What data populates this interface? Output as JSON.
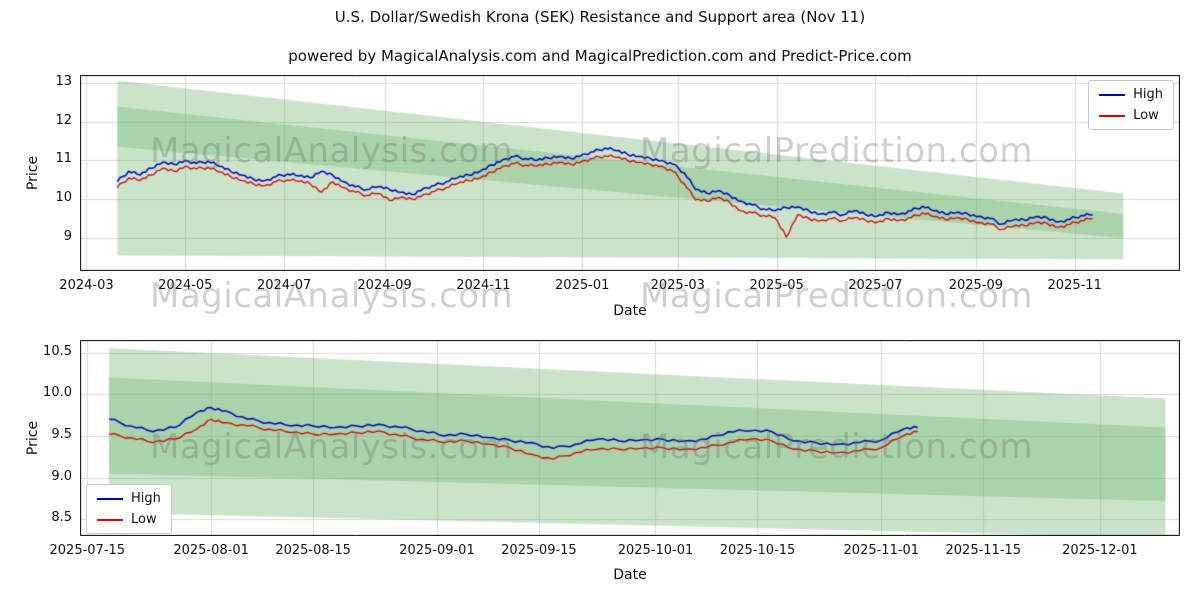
{
  "header": {
    "title": "U.S. Dollar/Swedish Krona (SEK) Resistance and Support area (Nov 11)",
    "subtitle": "powered by MagicalAnalysis.com and MagicalPrediction.com and Predict-Price.com"
  },
  "watermarks": {
    "analysis": "MagicalAnalysis.com",
    "prediction": "MagicalPrediction.com"
  },
  "colors": {
    "high": "#0000cc",
    "low": "#dd0000",
    "band": "#74b874",
    "band_alpha": 0.38,
    "grid": "#d9d9d9",
    "spine": "#000000"
  },
  "chart_data": [
    {
      "type": "line",
      "xlabel": "Date",
      "ylabel": "Price",
      "x_range": [
        "2024-02-26",
        "2026-01-05"
      ],
      "y_range": [
        8.15,
        13.2
      ],
      "jitter": 0.04,
      "x_ticks": [
        {
          "label": "2024-03",
          "date": "2024-03-01"
        },
        {
          "label": "2024-05",
          "date": "2024-05-01"
        },
        {
          "label": "2024-07",
          "date": "2024-07-01"
        },
        {
          "label": "2024-09",
          "date": "2024-09-01"
        },
        {
          "label": "2024-11",
          "date": "2024-11-01"
        },
        {
          "label": "2025-01",
          "date": "2025-01-01"
        },
        {
          "label": "2025-03",
          "date": "2025-03-01"
        },
        {
          "label": "2025-05",
          "date": "2025-05-01"
        },
        {
          "label": "2025-07",
          "date": "2025-07-01"
        },
        {
          "label": "2025-09",
          "date": "2025-09-01"
        },
        {
          "label": "2025-11",
          "date": "2025-11-01"
        }
      ],
      "y_ticks": [
        {
          "label": "9",
          "value": 9
        },
        {
          "label": "10",
          "value": 10
        },
        {
          "label": "11",
          "value": 11
        },
        {
          "label": "12",
          "value": 12
        },
        {
          "label": "13",
          "value": 13
        }
      ],
      "legend": {
        "position": "upper-right",
        "entries": [
          {
            "label": "High",
            "key": "high"
          },
          {
            "label": "Low",
            "key": "low"
          }
        ]
      },
      "bands": [
        {
          "x": [
            "2024-03-20",
            "2025-12-01"
          ],
          "top": [
            13.05,
            10.15
          ],
          "bottom": [
            11.35,
            9.0
          ]
        },
        {
          "x": [
            "2024-03-20",
            "2025-12-01"
          ],
          "top": [
            12.38,
            9.62
          ],
          "bottom": [
            8.55,
            8.45
          ]
        }
      ],
      "dates": [
        "2024-03-20",
        "2024-03-27",
        "2024-04-03",
        "2024-04-10",
        "2024-04-17",
        "2024-04-24",
        "2024-05-01",
        "2024-05-08",
        "2024-05-15",
        "2024-05-22",
        "2024-05-29",
        "2024-06-05",
        "2024-06-12",
        "2024-06-19",
        "2024-06-26",
        "2024-07-03",
        "2024-07-10",
        "2024-07-17",
        "2024-07-24",
        "2024-07-31",
        "2024-08-07",
        "2024-08-14",
        "2024-08-21",
        "2024-08-28",
        "2024-09-04",
        "2024-09-11",
        "2024-09-18",
        "2024-09-25",
        "2024-10-02",
        "2024-10-09",
        "2024-10-16",
        "2024-10-23",
        "2024-10-30",
        "2024-11-06",
        "2024-11-13",
        "2024-11-20",
        "2024-11-27",
        "2024-12-04",
        "2024-12-11",
        "2024-12-18",
        "2024-12-25",
        "2025-01-01",
        "2025-01-08",
        "2025-01-15",
        "2025-01-22",
        "2025-01-29",
        "2025-02-05",
        "2025-02-12",
        "2025-02-19",
        "2025-02-26",
        "2025-03-05",
        "2025-03-12",
        "2025-03-19",
        "2025-03-26",
        "2025-04-02",
        "2025-04-09",
        "2025-04-16",
        "2025-04-23",
        "2025-04-30",
        "2025-05-07",
        "2025-05-14",
        "2025-05-21",
        "2025-05-28",
        "2025-06-04",
        "2025-06-11",
        "2025-06-18",
        "2025-06-25",
        "2025-07-02",
        "2025-07-09",
        "2025-07-16",
        "2025-07-23",
        "2025-07-30",
        "2025-08-06",
        "2025-08-13",
        "2025-08-20",
        "2025-08-27",
        "2025-09-03",
        "2025-09-10",
        "2025-09-17",
        "2025-09-24",
        "2025-10-01",
        "2025-10-08",
        "2025-10-15",
        "2025-10-22",
        "2025-10-29",
        "2025-11-05",
        "2025-11-12"
      ],
      "series": [
        {
          "name": "High",
          "color_key": "high",
          "width": 1.5,
          "values": [
            10.45,
            10.72,
            10.62,
            10.8,
            10.95,
            10.9,
            11.0,
            10.92,
            10.98,
            10.85,
            10.72,
            10.62,
            10.52,
            10.48,
            10.58,
            10.65,
            10.6,
            10.55,
            10.72,
            10.62,
            10.45,
            10.32,
            10.25,
            10.32,
            10.25,
            10.18,
            10.12,
            10.28,
            10.35,
            10.45,
            10.55,
            10.62,
            10.72,
            10.88,
            11.02,
            11.1,
            11.05,
            11.0,
            11.06,
            11.1,
            11.05,
            11.15,
            11.22,
            11.32,
            11.25,
            11.15,
            11.1,
            11.05,
            11.0,
            10.9,
            10.68,
            10.25,
            10.15,
            10.22,
            10.1,
            9.95,
            9.85,
            9.75,
            9.7,
            9.78,
            9.8,
            9.7,
            9.62,
            9.66,
            9.6,
            9.7,
            9.6,
            9.56,
            9.66,
            9.62,
            9.7,
            9.82,
            9.7,
            9.62,
            9.66,
            9.62,
            9.56,
            9.5,
            9.36,
            9.46,
            9.46,
            9.55,
            9.52,
            9.42,
            9.48,
            9.58,
            9.6
          ]
        },
        {
          "name": "Low",
          "color_key": "low",
          "width": 1.3,
          "values": [
            10.3,
            10.55,
            10.48,
            10.62,
            10.8,
            10.72,
            10.85,
            10.78,
            10.82,
            10.7,
            10.58,
            10.48,
            10.4,
            10.35,
            10.45,
            10.5,
            10.46,
            10.4,
            10.18,
            10.45,
            10.3,
            10.18,
            10.1,
            10.15,
            9.97,
            10.05,
            10.0,
            10.12,
            10.2,
            10.3,
            10.4,
            10.48,
            10.55,
            10.7,
            10.85,
            10.92,
            10.88,
            10.85,
            10.9,
            10.95,
            10.9,
            10.98,
            11.05,
            11.12,
            11.08,
            11.0,
            10.95,
            10.9,
            10.85,
            10.72,
            10.4,
            9.98,
            9.95,
            10.05,
            9.92,
            9.7,
            9.65,
            9.58,
            9.52,
            9.02,
            9.6,
            9.5,
            9.45,
            9.5,
            9.45,
            9.52,
            9.45,
            9.4,
            9.5,
            9.46,
            9.52,
            9.65,
            9.55,
            9.48,
            9.52,
            9.48,
            9.4,
            9.36,
            9.22,
            9.3,
            9.32,
            9.4,
            9.38,
            9.28,
            9.35,
            9.45,
            9.5
          ]
        }
      ]
    },
    {
      "type": "line",
      "xlabel": "Date",
      "ylabel": "Price",
      "x_range": [
        "2025-07-14",
        "2025-12-12"
      ],
      "y_range": [
        8.3,
        10.65
      ],
      "jitter": 0.018,
      "x_ticks": [
        {
          "label": "2025-07-15",
          "date": "2025-07-15"
        },
        {
          "label": "2025-08-01",
          "date": "2025-08-01"
        },
        {
          "label": "2025-08-15",
          "date": "2025-08-15"
        },
        {
          "label": "2025-09-01",
          "date": "2025-09-01"
        },
        {
          "label": "2025-09-15",
          "date": "2025-09-15"
        },
        {
          "label": "2025-10-01",
          "date": "2025-10-01"
        },
        {
          "label": "2025-10-15",
          "date": "2025-10-15"
        },
        {
          "label": "2025-11-01",
          "date": "2025-11-01"
        },
        {
          "label": "2025-11-15",
          "date": "2025-11-15"
        },
        {
          "label": "2025-12-01",
          "date": "2025-12-01"
        }
      ],
      "y_ticks": [
        {
          "label": "8.5",
          "value": 8.5
        },
        {
          "label": "9.0",
          "value": 9.0
        },
        {
          "label": "9.5",
          "value": 9.5
        },
        {
          "label": "10.0",
          "value": 10.0
        },
        {
          "label": "10.5",
          "value": 10.5
        }
      ],
      "legend": {
        "position": "lower-left",
        "entries": [
          {
            "label": "High",
            "key": "high"
          },
          {
            "label": "Low",
            "key": "low"
          }
        ]
      },
      "bands": [
        {
          "x": [
            "2025-07-18",
            "2025-12-10"
          ],
          "top": [
            10.55,
            9.95
          ],
          "bottom": [
            9.05,
            8.72
          ]
        },
        {
          "x": [
            "2025-07-18",
            "2025-12-10"
          ],
          "top": [
            10.2,
            9.6
          ],
          "bottom": [
            8.58,
            8.28
          ]
        }
      ],
      "dates": [
        "2025-07-18",
        "2025-07-21",
        "2025-07-24",
        "2025-07-27",
        "2025-07-30",
        "2025-08-01",
        "2025-08-03",
        "2025-08-06",
        "2025-08-09",
        "2025-08-12",
        "2025-08-15",
        "2025-08-18",
        "2025-08-21",
        "2025-08-24",
        "2025-08-27",
        "2025-08-30",
        "2025-09-02",
        "2025-09-05",
        "2025-09-08",
        "2025-09-11",
        "2025-09-14",
        "2025-09-17",
        "2025-09-20",
        "2025-09-23",
        "2025-09-26",
        "2025-09-29",
        "2025-10-02",
        "2025-10-05",
        "2025-10-08",
        "2025-10-11",
        "2025-10-14",
        "2025-10-17",
        "2025-10-20",
        "2025-10-23",
        "2025-10-26",
        "2025-10-29",
        "2025-11-01",
        "2025-11-04",
        "2025-11-06"
      ],
      "series": [
        {
          "name": "High",
          "color_key": "high",
          "width": 1.5,
          "values": [
            9.7,
            9.62,
            9.55,
            9.6,
            9.78,
            9.84,
            9.8,
            9.7,
            9.66,
            9.62,
            9.62,
            9.6,
            9.62,
            9.64,
            9.6,
            9.56,
            9.5,
            9.52,
            9.48,
            9.45,
            9.42,
            9.35,
            9.4,
            9.46,
            9.44,
            9.45,
            9.46,
            9.44,
            9.46,
            9.55,
            9.56,
            9.55,
            9.44,
            9.42,
            9.4,
            9.42,
            9.45,
            9.58,
            9.6
          ]
        },
        {
          "name": "Low",
          "color_key": "low",
          "width": 1.3,
          "values": [
            9.52,
            9.48,
            9.42,
            9.46,
            9.58,
            9.7,
            9.66,
            9.62,
            9.58,
            9.54,
            9.52,
            9.52,
            9.54,
            9.56,
            9.5,
            9.46,
            9.42,
            9.44,
            9.4,
            9.36,
            9.28,
            9.22,
            9.3,
            9.34,
            9.34,
            9.35,
            9.36,
            9.34,
            9.36,
            9.42,
            9.46,
            9.44,
            9.34,
            9.32,
            9.3,
            9.32,
            9.36,
            9.5,
            9.55
          ]
        }
      ]
    }
  ]
}
